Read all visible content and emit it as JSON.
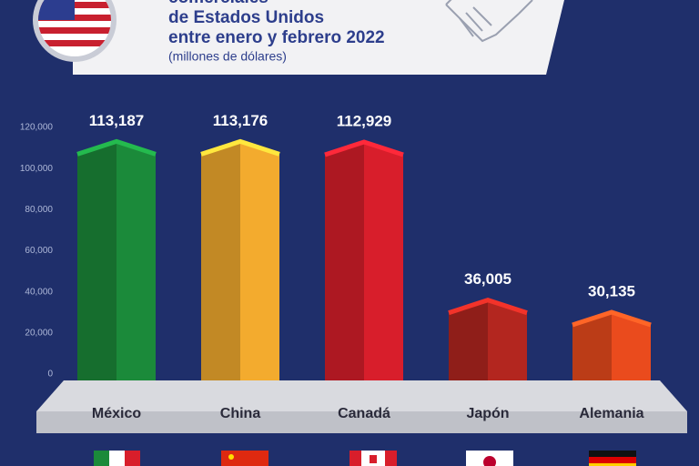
{
  "chart_data": {
    "type": "bar",
    "title_lines": [
      "comerciales",
      "de Estados Unidos",
      "entre enero y febrero 2022"
    ],
    "subtitle": "(millones de dólares)",
    "categories": [
      "México",
      "China",
      "Canadá",
      "Japón",
      "Alemania"
    ],
    "values": [
      113187,
      113176,
      112929,
      36005,
      30135
    ],
    "value_labels": [
      "113,187",
      "113,176",
      "112,929",
      "36,005",
      "30,135"
    ],
    "colors": [
      "#1b8a3a",
      "#f3ab2e",
      "#d81e2b",
      "#b3261f",
      "#ea4b1d"
    ],
    "ylim": [
      0,
      120000
    ],
    "yticks": [
      0,
      {
        "value": 20000,
        "label": "20,000"
      },
      {
        "value": 40000,
        "label": "40,000"
      },
      {
        "value": 60000,
        "label": "60,000"
      },
      {
        "value": 80000,
        "label": "80,000"
      },
      {
        "value": 100000,
        "label": "100,000"
      },
      {
        "value": 120000,
        "label": "120,000"
      }
    ],
    "grid": false
  }
}
